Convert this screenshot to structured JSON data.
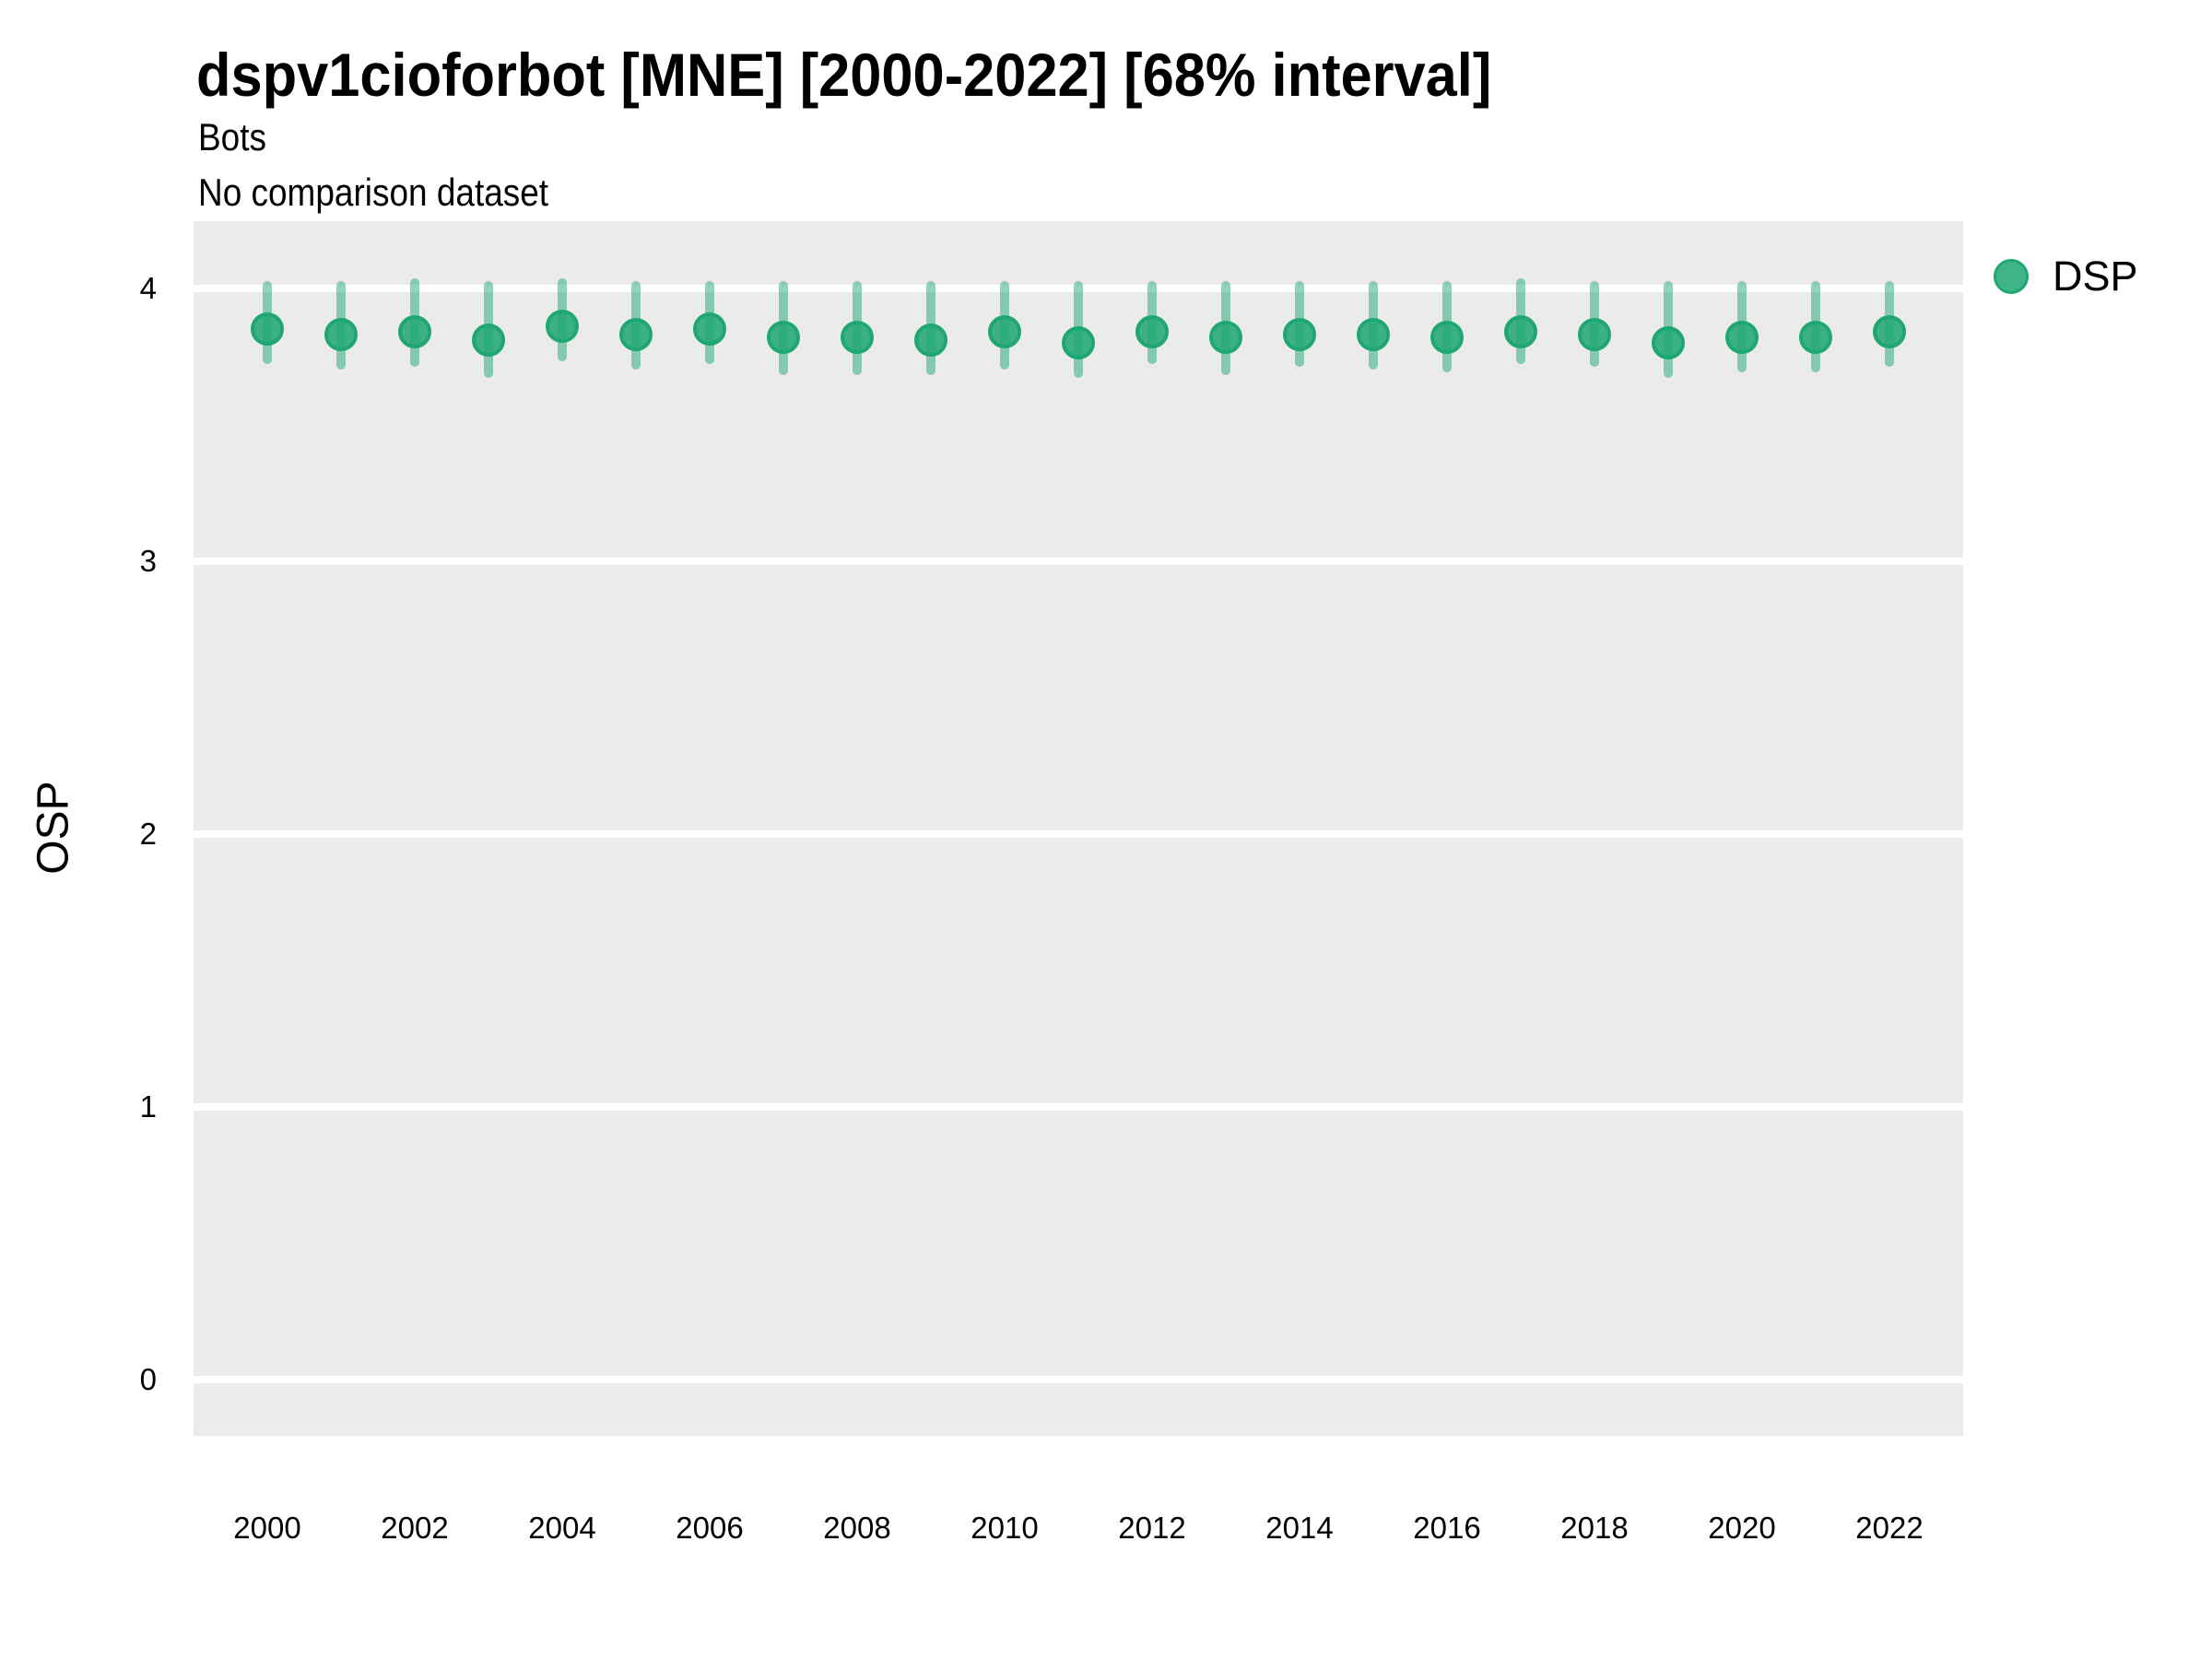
{
  "header": {
    "title": "dspv1cioforbot [MNE] [2000-2022] [68% interval]",
    "subtitle": "Bots",
    "comparison_note": "No comparison dataset"
  },
  "legend": {
    "position": "right-top",
    "items": [
      {
        "label": "DSP",
        "marker": "circle-icon",
        "color": "#1fa773"
      }
    ]
  },
  "chart_data": {
    "type": "scatter",
    "variant": "pointrange",
    "title": "dspv1cioforbot [MNE] [2000-2022] [68% interval]",
    "subtitle": "Bots",
    "note": "No comparison dataset",
    "interval_level": "68%",
    "xlabel": "",
    "ylabel": "OSP",
    "x": [
      2000,
      2001,
      2002,
      2003,
      2004,
      2005,
      2006,
      2007,
      2008,
      2009,
      2010,
      2011,
      2012,
      2013,
      2014,
      2015,
      2016,
      2017,
      2018,
      2019,
      2020,
      2021,
      2022
    ],
    "series": [
      {
        "name": "DSP",
        "values": [
          3.85,
          3.83,
          3.84,
          3.81,
          3.86,
          3.83,
          3.85,
          3.82,
          3.82,
          3.81,
          3.84,
          3.8,
          3.84,
          3.82,
          3.83,
          3.83,
          3.82,
          3.84,
          3.83,
          3.8,
          3.82,
          3.82,
          3.84
        ],
        "lower": [
          3.74,
          3.72,
          3.73,
          3.69,
          3.75,
          3.72,
          3.74,
          3.7,
          3.7,
          3.7,
          3.72,
          3.69,
          3.74,
          3.7,
          3.73,
          3.72,
          3.71,
          3.74,
          3.73,
          3.69,
          3.71,
          3.71,
          3.73
        ],
        "upper": [
          4.01,
          4.01,
          4.02,
          4.01,
          4.02,
          4.01,
          4.01,
          4.01,
          4.01,
          4.01,
          4.01,
          4.01,
          4.01,
          4.01,
          4.01,
          4.01,
          4.01,
          4.02,
          4.01,
          4.01,
          4.01,
          4.01,
          4.01
        ]
      }
    ],
    "x_ticks": [
      2000,
      2002,
      2004,
      2006,
      2008,
      2010,
      2012,
      2014,
      2016,
      2018,
      2020,
      2022
    ],
    "y_ticks": [
      0,
      1,
      2,
      3,
      4
    ],
    "ylim": [
      -0.2,
      4.25
    ],
    "grid": "horizontal-only",
    "legend_position": "right",
    "colors": {
      "series": "#1fa773",
      "point_alpha": 0.85,
      "interval_alpha": 0.5,
      "panel_bg": "#ebebeb",
      "grid": "#ffffff",
      "text": "#000000"
    }
  }
}
